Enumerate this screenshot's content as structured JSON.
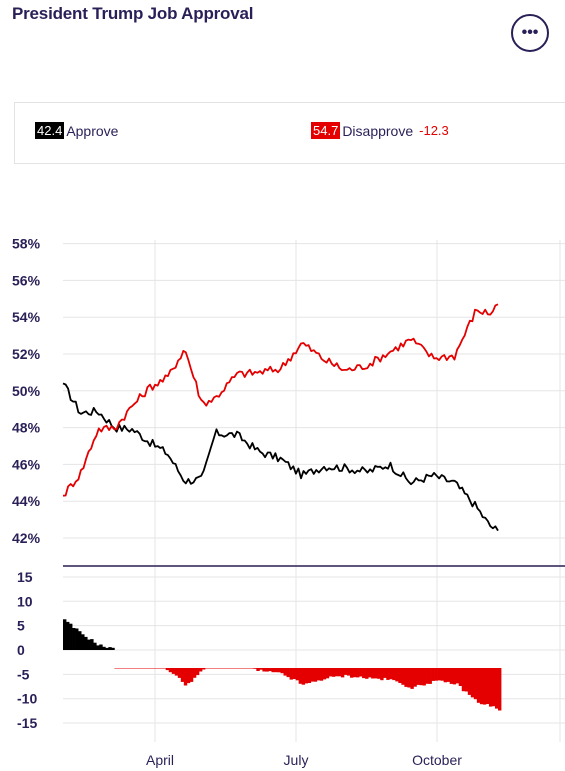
{
  "header": {
    "title": "President Trump Job Approval",
    "more_label": "•••"
  },
  "legend": {
    "approve_value": "42.4",
    "approve_label": "Approve",
    "disapprove_value": "54.7",
    "disapprove_label": "Disapprove",
    "spread": "-12.3"
  },
  "colors": {
    "approve": "#000000",
    "disapprove": "#e40000",
    "text": "#2a1f57",
    "grid": "#e5e5e5"
  },
  "chart_data": [
    {
      "type": "line",
      "title": "",
      "y_tick_labels": [
        "58%",
        "56%",
        "54%",
        "52%",
        "50%",
        "48%",
        "46%",
        "44%",
        "42%"
      ],
      "ylim": [
        41.6,
        58
      ],
      "grid": true,
      "x": [
        0,
        0.04,
        0.08,
        0.12,
        0.16,
        0.2,
        0.24,
        0.28,
        0.32,
        0.35,
        0.4,
        0.45,
        0.5,
        0.55,
        0.6,
        0.65,
        0.7,
        0.75,
        0.8,
        0.85,
        0.9,
        0.95,
        0.98,
        1.0
      ],
      "series": [
        {
          "name": "Approve",
          "color": "#000000",
          "values": [
            50.4,
            48.8,
            48.9,
            48.0,
            47.9,
            47.2,
            46.6,
            45.1,
            45.2,
            47.7,
            47.6,
            46.7,
            46.3,
            45.4,
            45.9,
            45.8,
            45.6,
            46.0,
            45.0,
            45.4,
            45.0,
            43.7,
            42.7,
            42.4
          ]
        },
        {
          "name": "Disapprove",
          "color": "#e40000",
          "values": [
            44.3,
            45.5,
            47.9,
            48.0,
            49.2,
            50.2,
            50.7,
            52.3,
            49.3,
            49.6,
            50.9,
            51.0,
            51.2,
            52.6,
            51.7,
            51.1,
            51.4,
            52.1,
            52.8,
            51.8,
            51.9,
            54.4,
            54.2,
            54.7
          ]
        }
      ]
    },
    {
      "type": "bar",
      "title": "",
      "y_tick_labels": [
        "15",
        "10",
        "5",
        "0",
        "-5",
        "-10",
        "-15"
      ],
      "ylim": [
        -17,
        17
      ],
      "x_tick_labels": [
        "April",
        "July",
        "October"
      ],
      "x": [
        0,
        0.04,
        0.08,
        0.12,
        0.16,
        0.2,
        0.24,
        0.28,
        0.32,
        0.35,
        0.4,
        0.45,
        0.5,
        0.55,
        0.6,
        0.65,
        0.7,
        0.75,
        0.8,
        0.85,
        0.9,
        0.95,
        0.98,
        1.0
      ],
      "values": [
        6.1,
        3.3,
        1.0,
        0.0,
        -1.3,
        -3.0,
        -4.1,
        -7.2,
        -4.1,
        -1.9,
        -3.3,
        -4.3,
        -4.9,
        -7.2,
        -5.8,
        -5.3,
        -5.8,
        -6.1,
        -7.8,
        -6.4,
        -6.9,
        -10.7,
        -11.5,
        -12.3
      ]
    }
  ]
}
